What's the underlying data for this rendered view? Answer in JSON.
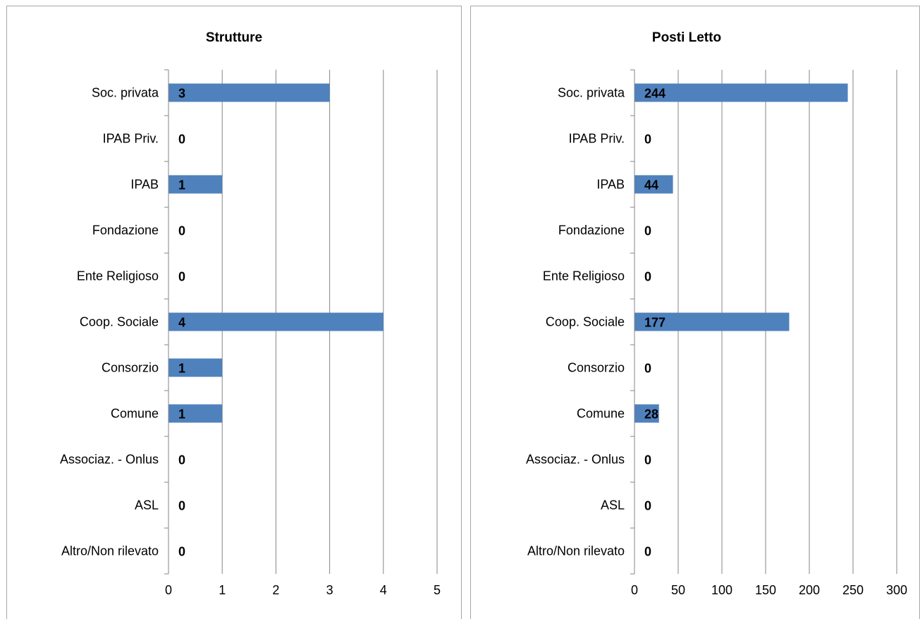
{
  "chart_data": [
    {
      "type": "bar",
      "orientation": "horizontal",
      "title": "Strutture",
      "categories": [
        "Soc. privata",
        "IPAB Priv.",
        "IPAB",
        "Fondazione",
        "Ente Religioso",
        "Coop. Sociale",
        "Consorzio",
        "Comune",
        "Associaz. - Onlus",
        "ASL",
        "Altro/Non rilevato"
      ],
      "values": [
        3,
        0,
        1,
        0,
        0,
        4,
        1,
        1,
        0,
        0,
        0
      ],
      "xlim": [
        0,
        5
      ],
      "xticks": [
        0,
        1,
        2,
        3,
        4,
        5
      ],
      "grid": true,
      "bar_color": "#4f81bd"
    },
    {
      "type": "bar",
      "orientation": "horizontal",
      "title": "Posti Letto",
      "categories": [
        "Soc. privata",
        "IPAB Priv.",
        "IPAB",
        "Fondazione",
        "Ente Religioso",
        "Coop. Sociale",
        "Consorzio",
        "Comune",
        "Associaz. - Onlus",
        "ASL",
        "Altro/Non rilevato"
      ],
      "values": [
        244,
        0,
        44,
        0,
        0,
        177,
        0,
        28,
        0,
        0,
        0
      ],
      "xlim": [
        0,
        300
      ],
      "xticks": [
        0,
        50,
        100,
        150,
        200,
        250,
        300
      ],
      "grid": true,
      "bar_color": "#4f81bd"
    }
  ]
}
